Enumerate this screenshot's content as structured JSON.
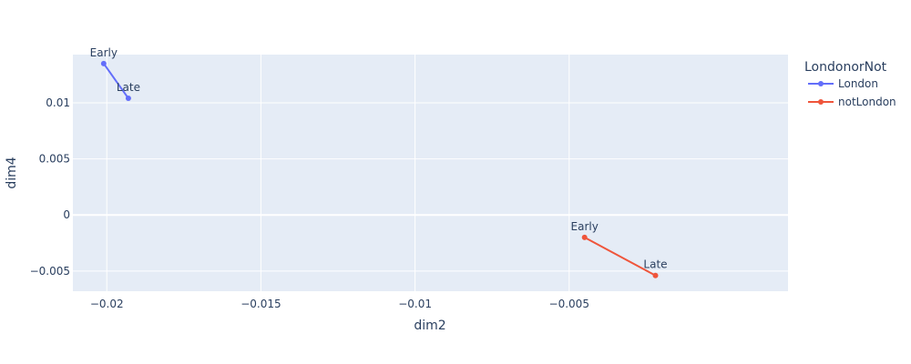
{
  "chart_data": {
    "type": "line",
    "xlabel": "dim2",
    "ylabel": "dim4",
    "xlim": [
      -0.0211,
      0.0021
    ],
    "ylim": [
      -0.0068,
      0.0143
    ],
    "x_ticks": [
      -0.02,
      -0.015,
      -0.01,
      -0.005
    ],
    "x_tick_labels": [
      "−0.02",
      "−0.015",
      "−0.01",
      "−0.005"
    ],
    "y_ticks": [
      -0.005,
      0,
      0.005,
      0.01
    ],
    "y_tick_labels": [
      "−0.005",
      "0",
      "0.005",
      "0.01"
    ],
    "grid": true,
    "legend": {
      "title": "LondonorNot",
      "position": "right"
    },
    "series": [
      {
        "name": "London",
        "color": "#636efa",
        "x": [
          -0.0201,
          -0.0193
        ],
        "y": [
          0.0135,
          0.0104
        ],
        "labels": [
          "Early",
          "Late"
        ]
      },
      {
        "name": "notLondon",
        "color": "#ef553b",
        "x": [
          -0.0045,
          -0.0022
        ],
        "y": [
          -0.002,
          -0.0054
        ],
        "labels": [
          "Early",
          "Late"
        ]
      }
    ]
  },
  "colors": {
    "plot_background": "#e5ecf6",
    "grid": "#ffffff",
    "text": "#2a3f5f"
  }
}
